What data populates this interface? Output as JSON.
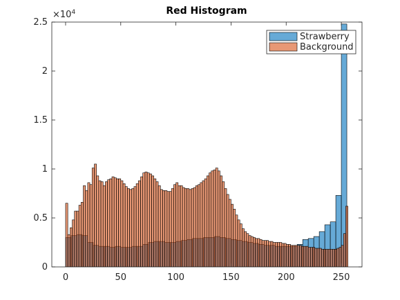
{
  "chart_data": {
    "type": "histogram",
    "title": "Red Histogram",
    "y_exponent_base": "×10",
    "y_exponent_power": "4",
    "xlim": [
      -12.5,
      268.75
    ],
    "xticks": [
      0,
      50,
      100,
      150,
      200,
      250
    ],
    "ylim": [
      0,
      25000
    ],
    "yticks": [
      0,
      {
        "value": 5000,
        "label": "0.5"
      },
      {
        "value": 10000,
        "label": "1"
      },
      {
        "value": 15000,
        "label": "1.5"
      },
      {
        "value": 20000,
        "label": "2"
      },
      {
        "value": 25000,
        "label": "2.5"
      }
    ],
    "legend": "top-right",
    "opacity": 0.6,
    "series": [
      {
        "name": "Strawberry",
        "color": "#0072bd",
        "bins": [
          0,
          5,
          10,
          15,
          20,
          25,
          30,
          35,
          40,
          45,
          50,
          55,
          60,
          65,
          70,
          75,
          80,
          85,
          90,
          95,
          100,
          105,
          110,
          115,
          120,
          125,
          130,
          135,
          140,
          145,
          150,
          155,
          160,
          165,
          170,
          175,
          180,
          185,
          190,
          195,
          200,
          205,
          210,
          215,
          220,
          225,
          230,
          235,
          240,
          245,
          250,
          255
        ],
        "values": [
          3000,
          3200,
          3300,
          3200,
          2500,
          2200,
          2100,
          2100,
          2000,
          2100,
          2000,
          2000,
          2100,
          2100,
          2300,
          2500,
          2600,
          2600,
          2500,
          2500,
          2600,
          2700,
          2800,
          2900,
          2900,
          3000,
          3000,
          3100,
          3000,
          2900,
          2800,
          2700,
          2600,
          2500,
          2400,
          2300,
          2200,
          2200,
          2100,
          2100,
          2100,
          2100,
          2300,
          2800,
          2900,
          3100,
          3600,
          4300,
          4600,
          7300,
          24800
        ]
      },
      {
        "name": "Background",
        "color": "#d95319",
        "bins": [
          0,
          2,
          4,
          6,
          8,
          10,
          12,
          14,
          16,
          18,
          20,
          22,
          24,
          26,
          28,
          30,
          32,
          34,
          36,
          38,
          40,
          42,
          44,
          46,
          48,
          50,
          52,
          54,
          56,
          58,
          60,
          62,
          64,
          66,
          68,
          70,
          72,
          74,
          76,
          78,
          80,
          82,
          84,
          86,
          88,
          90,
          92,
          94,
          96,
          98,
          100,
          102,
          104,
          106,
          108,
          110,
          112,
          114,
          116,
          118,
          120,
          122,
          124,
          126,
          128,
          130,
          132,
          134,
          136,
          138,
          140,
          142,
          144,
          146,
          148,
          150,
          152,
          154,
          156,
          158,
          160,
          162,
          164,
          166,
          168,
          170,
          172,
          174,
          176,
          178,
          180,
          182,
          184,
          186,
          188,
          190,
          192,
          194,
          196,
          198,
          200,
          202,
          204,
          206,
          208,
          210,
          212,
          214,
          216,
          218,
          220,
          222,
          224,
          226,
          228,
          230,
          232,
          234,
          236,
          238,
          240,
          242,
          244,
          246,
          248,
          250,
          252,
          254,
          256
        ],
        "values": [
          6500,
          3300,
          4000,
          4800,
          5700,
          5700,
          6300,
          6600,
          8300,
          7800,
          8600,
          8400,
          10100,
          10500,
          9300,
          8800,
          8700,
          8300,
          8700,
          8900,
          9000,
          9200,
          9100,
          9000,
          9000,
          8800,
          8500,
          8200,
          8000,
          7900,
          8000,
          8200,
          8500,
          8800,
          9200,
          9600,
          9700,
          9600,
          9500,
          9300,
          9000,
          8700,
          8300,
          7900,
          7800,
          7800,
          7700,
          7700,
          8000,
          8400,
          8600,
          8300,
          8300,
          8100,
          8000,
          8000,
          7900,
          8000,
          8100,
          8300,
          8400,
          8600,
          8800,
          9000,
          9300,
          9600,
          9800,
          9900,
          10100,
          9800,
          9300,
          8700,
          8000,
          7400,
          6900,
          6400,
          5900,
          5300,
          4800,
          4400,
          3900,
          3600,
          3400,
          3200,
          3100,
          3000,
          2900,
          2900,
          2800,
          2700,
          2700,
          2700,
          2600,
          2600,
          2500,
          2500,
          2500,
          2500,
          2400,
          2400,
          2300,
          2300,
          2200,
          2200,
          2200,
          2200,
          2200,
          2100,
          2100,
          2100,
          2000,
          2000,
          2000,
          1900,
          1900,
          1900,
          1800,
          1800,
          1800,
          1800,
          1800,
          1800,
          1800,
          1900,
          2000,
          2200,
          3400,
          6200
        ]
      }
    ]
  }
}
